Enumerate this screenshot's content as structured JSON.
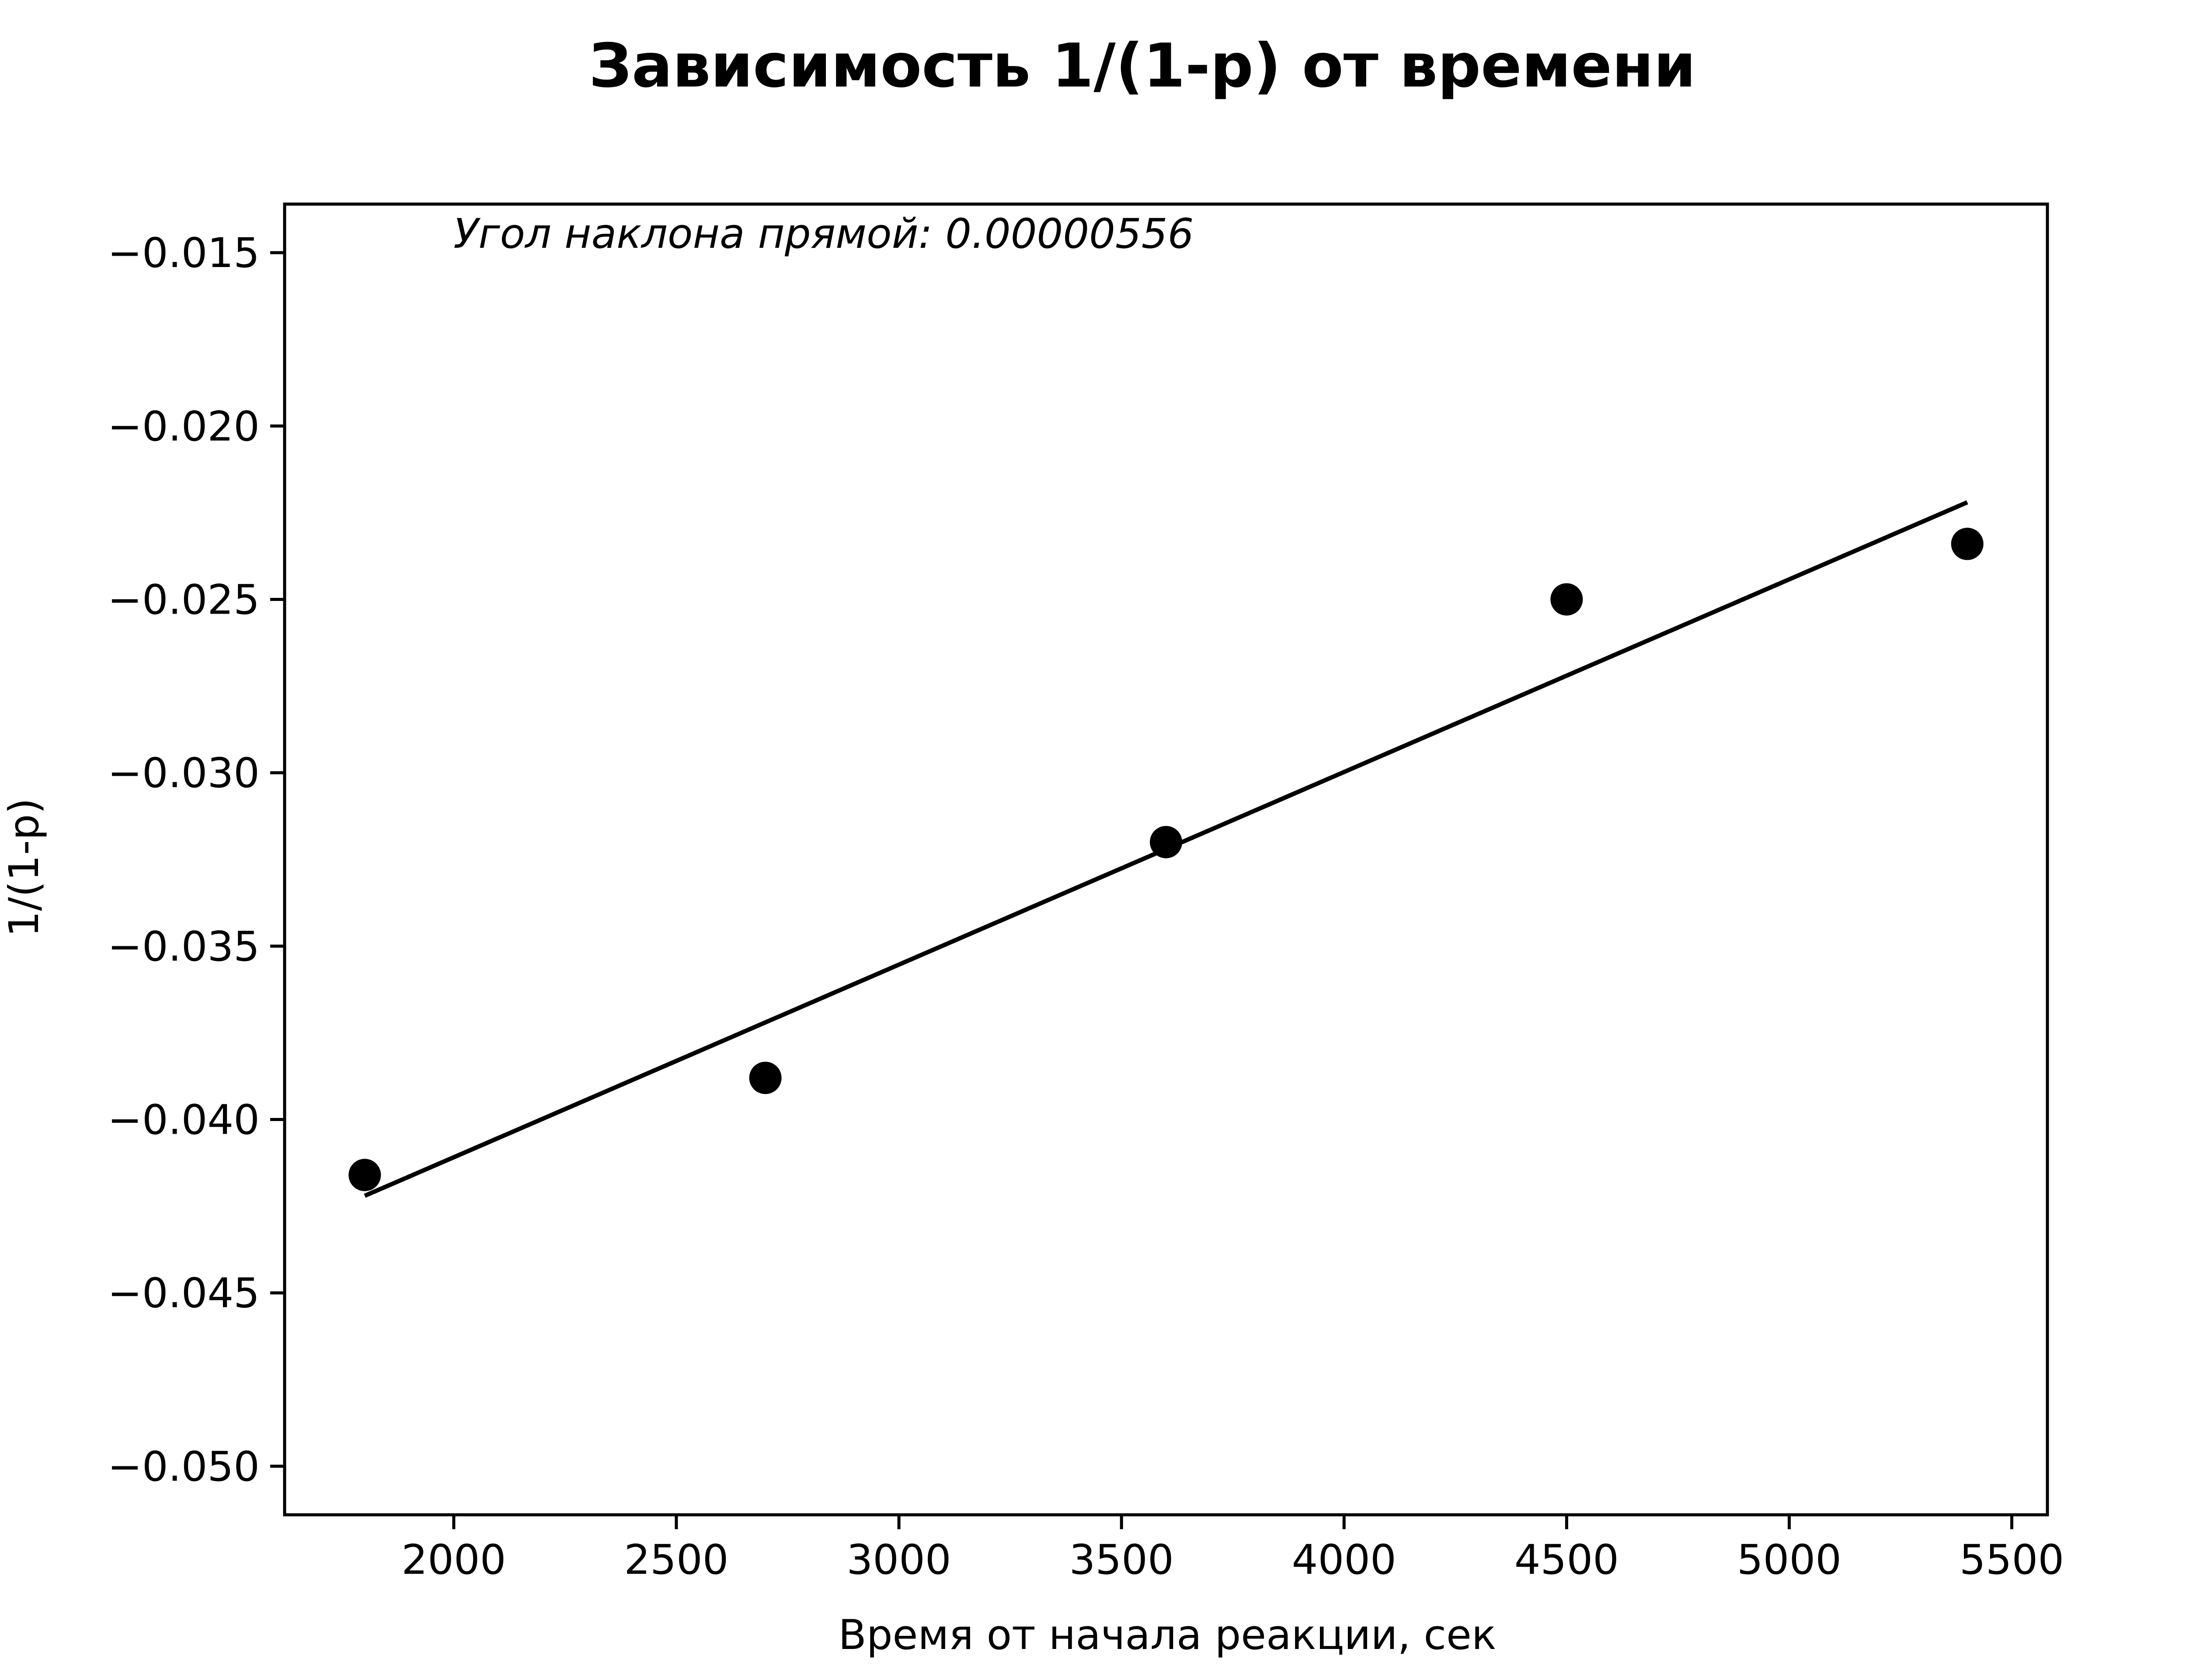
{
  "chart_data": {
    "type": "scatter",
    "title": "Зависимость 1/(1-p) от времени",
    "xlabel": "Время от начала реакции, сек",
    "ylabel": "1/(1-p)",
    "annotation": "Угол наклона прямой: 0.00000556",
    "xlim": [
      1620,
      5580
    ],
    "ylim": [
      -0.0514,
      -0.0136
    ],
    "xticks": [
      2000,
      2500,
      3000,
      3500,
      4000,
      4500,
      5000,
      5500
    ],
    "xtick_labels": [
      "2000",
      "2500",
      "3000",
      "3500",
      "4000",
      "4500",
      "5000",
      "5500"
    ],
    "yticks": [
      -0.015,
      -0.02,
      -0.025,
      -0.03,
      -0.035,
      -0.04,
      -0.045,
      -0.05
    ],
    "ytick_labels": [
      "−0.015",
      "−0.020",
      "−0.025",
      "−0.030",
      "−0.035",
      "−0.040",
      "−0.045",
      "−0.050"
    ],
    "grid": false,
    "points": {
      "x": [
        1800,
        2700,
        3600,
        4500,
        5400
      ],
      "y": [
        -0.0416,
        -0.0388,
        -0.032,
        -0.025,
        -0.0234
      ]
    },
    "fit_line": {
      "x": [
        1800,
        5400
      ],
      "y": [
        -0.0422,
        -0.0222
      ]
    },
    "colors": {
      "points": "#000000",
      "line": "#000000",
      "axes": "#000000",
      "background": "#ffffff"
    }
  }
}
